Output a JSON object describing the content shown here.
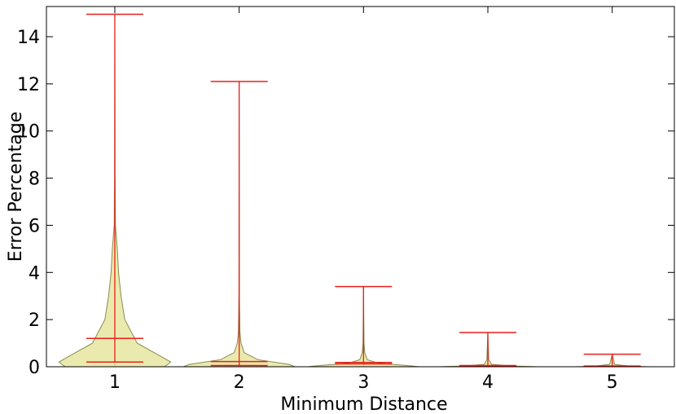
{
  "chart_data": {
    "type": "violin",
    "x_label": "Minimum Distance",
    "y_label": "Error Percentage",
    "categories": [
      "1",
      "2",
      "3",
      "4",
      "5"
    ],
    "max": [
      14.95,
      12.1,
      3.4,
      1.45,
      0.53
    ],
    "mean": [
      1.2,
      0.22,
      0.18,
      0.05,
      0.03
    ],
    "min": [
      0.2,
      0.05,
      0.12,
      0.02,
      0.01
    ],
    "density": [
      {
        "y": [
          0,
          0.2,
          0.5,
          1,
          2,
          3,
          4,
          5,
          6,
          8,
          14.95
        ],
        "width": [
          0.4,
          0.45,
          0.35,
          0.18,
          0.08,
          0.05,
          0.03,
          0.02,
          0.005,
          0.002,
          0
        ]
      },
      {
        "y": [
          0,
          0.1,
          0.3,
          0.6,
          1,
          1.5,
          3,
          12.1
        ],
        "width": [
          0.45,
          0.4,
          0.15,
          0.04,
          0.015,
          0.006,
          0.002,
          0
        ]
      },
      {
        "y": [
          0,
          0.05,
          0.15,
          0.3,
          0.6,
          1,
          3.4
        ],
        "width": [
          0.45,
          0.35,
          0.12,
          0.03,
          0.01,
          0.004,
          0
        ]
      },
      {
        "y": [
          0,
          0.03,
          0.1,
          0.3,
          1.45
        ],
        "width": [
          0.4,
          0.2,
          0.03,
          0.008,
          0
        ]
      },
      {
        "y": [
          0,
          0.02,
          0.1,
          0.53
        ],
        "width": [
          0.3,
          0.15,
          0.02,
          0
        ]
      }
    ],
    "fill_color": "#e6e6a0",
    "edge_color": "#8a8a50",
    "line_color": "#e8201a",
    "xlim": [
      0.45,
      5.5
    ],
    "ylim": [
      0,
      15.28
    ],
    "yticks": [
      0,
      2,
      4,
      6,
      8,
      10,
      12,
      14
    ]
  }
}
